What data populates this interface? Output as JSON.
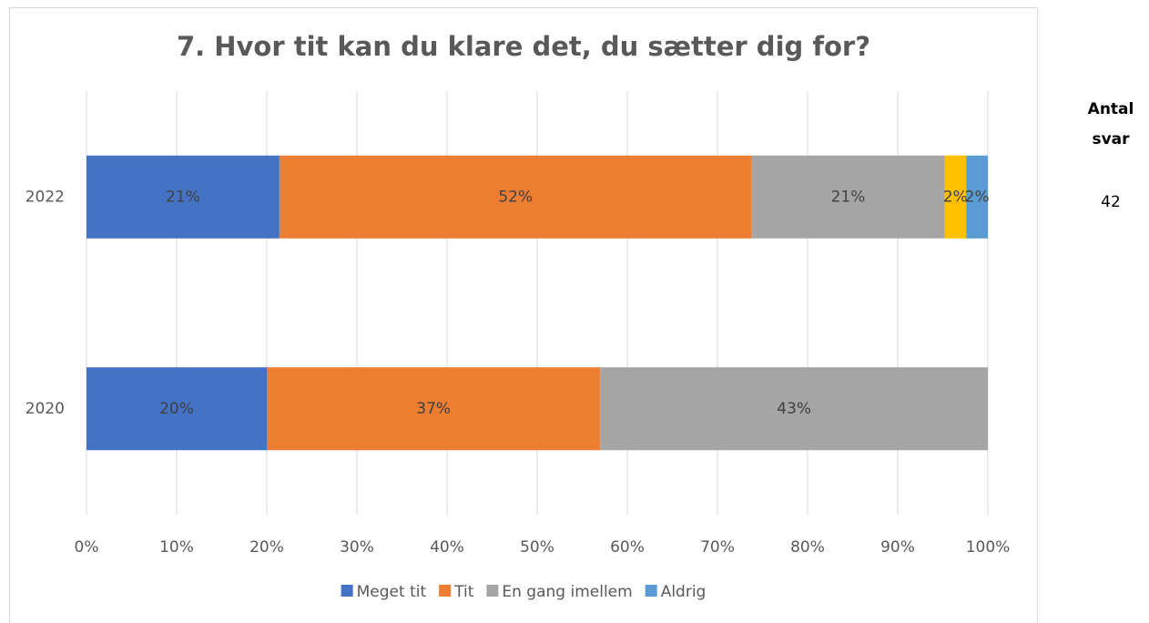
{
  "chart_data": {
    "type": "stacked_bar_horizontal",
    "title": "7. Hvor tit kan du klare det, du sætter dig for?",
    "categories": [
      "2022",
      "2020"
    ],
    "series": [
      {
        "name": "Meget tit",
        "color": "#4472c4",
        "values": [
          21.4,
          20
        ],
        "value_labels": [
          "21%",
          "20%"
        ]
      },
      {
        "name": "Tit",
        "color": "#ed7d31",
        "values": [
          52.4,
          37
        ],
        "value_labels": [
          "52%",
          "37%"
        ]
      },
      {
        "name": "En gang imellem",
        "color": "#a5a5a5",
        "values": [
          21.4,
          43
        ],
        "value_labels": [
          "21%",
          "43%"
        ]
      },
      {
        "color": "#ffc000",
        "values": [
          2.4,
          null
        ],
        "value_labels": [
          "2%",
          null
        ]
      },
      {
        "name": "Aldrig",
        "color": "#5b9bd5",
        "values": [
          2.4,
          null
        ],
        "value_labels": [
          "2%",
          null
        ]
      }
    ],
    "xlim": [
      0,
      100
    ],
    "xticks": [
      {
        "value": 0,
        "label": "0%"
      },
      {
        "value": 10,
        "label": "10%"
      },
      {
        "value": 20,
        "label": "20%"
      },
      {
        "value": 30,
        "label": "30%"
      },
      {
        "value": 40,
        "label": "40%"
      },
      {
        "value": 50,
        "label": "50%"
      },
      {
        "value": 60,
        "label": "60%"
      },
      {
        "value": 70,
        "label": "70%"
      },
      {
        "value": 80,
        "label": "80%"
      },
      {
        "value": 90,
        "label": "90%"
      },
      {
        "value": 100,
        "label": "100%"
      }
    ],
    "grid": true,
    "legend": "bottom",
    "counts_header": "Antal svar",
    "counts": [
      42,
      null
    ]
  }
}
